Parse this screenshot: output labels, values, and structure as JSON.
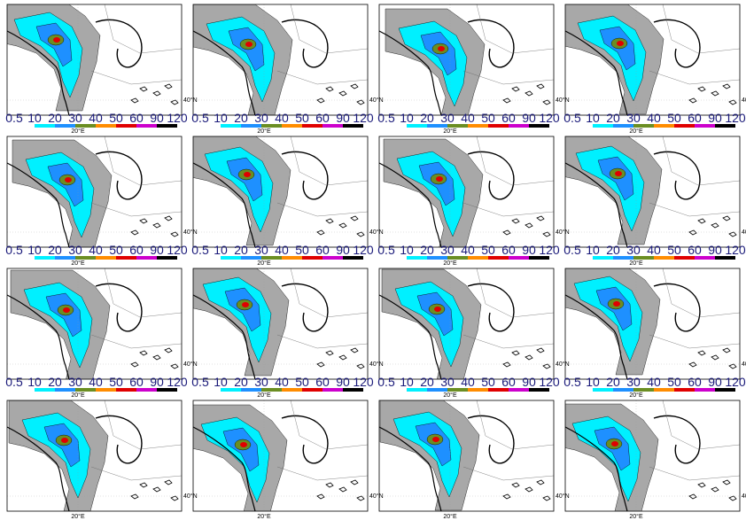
{
  "panels": [
    {
      "lon_label": "20°E",
      "lat_label": "40°N",
      "colorbar": true
    },
    {
      "lon_label": "20°E",
      "lat_label": "40°N",
      "colorbar": true
    },
    {
      "lon_label": "20°E",
      "lat_label": "40°N",
      "colorbar": true
    },
    {
      "lon_label": "20°E",
      "lat_label": "40°N",
      "colorbar": true
    },
    {
      "lon_label": "20°E",
      "lat_label": "40°N",
      "colorbar": true
    },
    {
      "lon_label": "20°E",
      "lat_label": "40°N",
      "colorbar": true
    },
    {
      "lon_label": "20°E",
      "lat_label": "40°N",
      "colorbar": true
    },
    {
      "lon_label": "20°E",
      "lat_label": "40°N",
      "colorbar": true
    },
    {
      "lon_label": "20°E",
      "lat_label": "40°N",
      "colorbar": true
    },
    {
      "lon_label": "20°E",
      "lat_label": "40°N",
      "colorbar": true
    },
    {
      "lon_label": "20°E",
      "lat_label": "40°N",
      "colorbar": true
    },
    {
      "lon_label": "20°E",
      "lat_label": "40°N",
      "colorbar": true
    },
    {
      "lon_label": "20°E",
      "lat_label": "40°N",
      "colorbar": false
    },
    {
      "lon_label": "20°E",
      "lat_label": "40°N",
      "colorbar": false
    },
    {
      "lon_label": "20°E",
      "lat_label": "40°N",
      "colorbar": false
    },
    {
      "lon_label": "20°E",
      "lat_label": "40°N",
      "colorbar": false
    }
  ],
  "colorbar": {
    "labels": [
      0.5,
      10,
      20,
      30,
      40,
      50,
      60,
      90,
      120
    ],
    "colors": [
      "#ffffff",
      "#00f0ff",
      "#1e90ff",
      "#6b8e23",
      "#ff8c00",
      "#e00000",
      "#cc00cc",
      "#000000"
    ]
  }
}
